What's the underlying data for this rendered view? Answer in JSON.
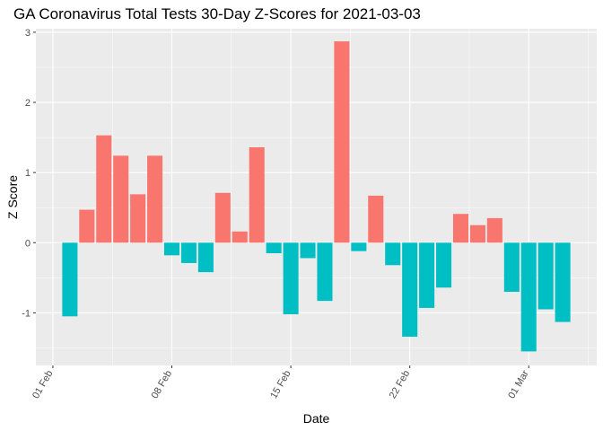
{
  "chart_data": {
    "type": "bar",
    "title": "GA Coronavirus Total Tests 30-Day Z-Scores for 2021-03-03",
    "xlabel": "Date",
    "ylabel": "Z Score",
    "ylim": [
      -1.75,
      3.05
    ],
    "yticks": [
      -1,
      0,
      1,
      2,
      3
    ],
    "x_tick_labels": [
      "01 Feb",
      "08 Feb",
      "15 Feb",
      "22 Feb",
      "01 Mar"
    ],
    "x_tick_dates": [
      "2021-02-01",
      "2021-02-08",
      "2021-02-15",
      "2021-02-22",
      "2021-03-01"
    ],
    "xlim": [
      "2021-01-31",
      "2021-03-05"
    ],
    "grid": true,
    "legend": "none",
    "colors": {
      "positive": "#F8766D",
      "negative": "#00BFC4",
      "panel": "#EBEBEB",
      "grid": "#FFFFFF"
    },
    "dates": [
      "2021-02-02",
      "2021-02-03",
      "2021-02-04",
      "2021-02-05",
      "2021-02-06",
      "2021-02-07",
      "2021-02-08",
      "2021-02-09",
      "2021-02-10",
      "2021-02-11",
      "2021-02-12",
      "2021-02-13",
      "2021-02-14",
      "2021-02-15",
      "2021-02-16",
      "2021-02-17",
      "2021-02-18",
      "2021-02-19",
      "2021-02-20",
      "2021-02-21",
      "2021-02-22",
      "2021-02-23",
      "2021-02-24",
      "2021-02-25",
      "2021-02-26",
      "2021-02-27",
      "2021-02-28",
      "2021-03-01",
      "2021-03-02",
      "2021-03-03"
    ],
    "values": [
      -1.05,
      0.47,
      1.53,
      1.24,
      0.69,
      1.24,
      -0.18,
      -0.29,
      -0.42,
      0.71,
      0.16,
      1.36,
      -0.15,
      -1.02,
      -0.22,
      -0.83,
      2.87,
      -0.12,
      0.67,
      -0.32,
      -1.34,
      -0.93,
      -0.64,
      0.41,
      0.25,
      0.35,
      -0.7,
      -1.55,
      -0.95,
      -1.13
    ]
  }
}
